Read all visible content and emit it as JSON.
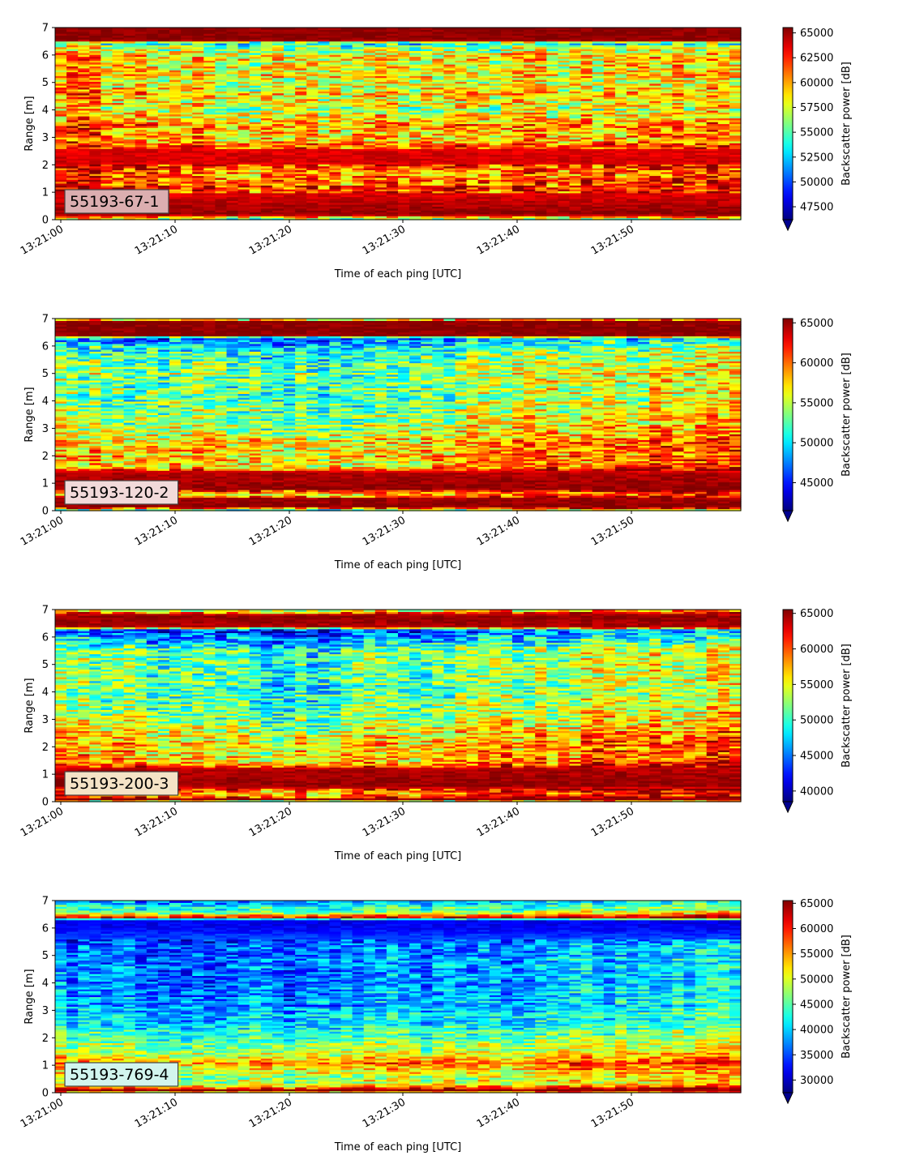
{
  "chart_data": [
    {
      "type": "heatmap",
      "id_label": "55193-67-1",
      "xlabel": "Time of each ping [UTC]",
      "ylabel": "Range [m]",
      "colorbar_label": "Backscatter power [dB]",
      "x_ticks": [
        "13:21:00",
        "13:21:10",
        "13:21:20",
        "13:21:30",
        "13:21:40",
        "13:21:50"
      ],
      "y_ticks": [
        "0",
        "1",
        "2",
        "3",
        "4",
        "5",
        "6",
        "7"
      ],
      "ylim": [
        0,
        7
      ],
      "colorbar_ticks": [
        "47500",
        "50000",
        "52500",
        "55000",
        "57500",
        "60000",
        "62500",
        "65000"
      ],
      "colorbar_range": [
        46200,
        65536
      ],
      "colormap": "jet",
      "id_box_color": "#dcaeb0",
      "profile": [
        [
          0.0,
          0.5
        ],
        [
          0.2,
          0.99
        ],
        [
          0.55,
          0.95
        ],
        [
          1.0,
          0.9
        ],
        [
          1.4,
          0.82
        ],
        [
          1.8,
          0.8
        ],
        [
          2.1,
          0.92
        ],
        [
          2.6,
          0.9
        ],
        [
          3.0,
          0.72
        ],
        [
          3.5,
          0.78
        ],
        [
          4.0,
          0.62
        ],
        [
          4.5,
          0.72
        ],
        [
          5.0,
          0.66
        ],
        [
          5.5,
          0.7
        ],
        [
          6.0,
          0.68
        ],
        [
          6.3,
          0.6
        ],
        [
          6.45,
          0.45
        ],
        [
          6.55,
          0.99
        ],
        [
          7.0,
          0.99
        ]
      ],
      "trend": [
        [
          0.0,
          0.05
        ],
        [
          0.3,
          -0.1
        ],
        [
          1.0,
          0.0
        ]
      ],
      "noise": 0.18
    },
    {
      "type": "heatmap",
      "id_label": "55193-120-2",
      "xlabel": "Time of each ping [UTC]",
      "ylabel": "Range [m]",
      "colorbar_label": "Backscatter power [dB]",
      "x_ticks": [
        "13:21:00",
        "13:21:10",
        "13:21:20",
        "13:21:30",
        "13:21:40",
        "13:21:50"
      ],
      "y_ticks": [
        "0",
        "1",
        "2",
        "3",
        "4",
        "5",
        "6",
        "7"
      ],
      "ylim": [
        0,
        7
      ],
      "colorbar_ticks": [
        "45000",
        "50000",
        "55000",
        "60000",
        "65000"
      ],
      "colorbar_range": [
        41500,
        65536
      ],
      "colormap": "jet",
      "id_box_color": "#f2dada",
      "profile": [
        [
          0.0,
          0.4
        ],
        [
          0.15,
          0.99
        ],
        [
          0.45,
          0.97
        ],
        [
          0.6,
          0.7
        ],
        [
          0.8,
          0.98
        ],
        [
          1.4,
          0.95
        ],
        [
          1.6,
          0.7
        ],
        [
          2.0,
          0.72
        ],
        [
          2.5,
          0.68
        ],
        [
          3.0,
          0.6
        ],
        [
          3.5,
          0.56
        ],
        [
          4.0,
          0.52
        ],
        [
          4.5,
          0.52
        ],
        [
          5.0,
          0.55
        ],
        [
          5.5,
          0.5
        ],
        [
          6.0,
          0.4
        ],
        [
          6.3,
          0.25
        ],
        [
          6.4,
          0.99
        ],
        [
          6.9,
          0.99
        ],
        [
          7.0,
          0.55
        ]
      ],
      "trend": [
        [
          0.0,
          0.0
        ],
        [
          0.35,
          -0.08
        ],
        [
          1.0,
          0.12
        ]
      ],
      "noise": 0.17
    },
    {
      "type": "heatmap",
      "id_label": "55193-200-3",
      "xlabel": "Time of each ping [UTC]",
      "ylabel": "Range [m]",
      "colorbar_label": "Backscatter power [dB]",
      "x_ticks": [
        "13:21:00",
        "13:21:10",
        "13:21:20",
        "13:21:30",
        "13:21:40",
        "13:21:50"
      ],
      "y_ticks": [
        "0",
        "1",
        "2",
        "3",
        "4",
        "5",
        "6",
        "7"
      ],
      "ylim": [
        0,
        7
      ],
      "colorbar_ticks": [
        "40000",
        "45000",
        "50000",
        "55000",
        "60000",
        "65000"
      ],
      "colorbar_range": [
        38500,
        65536
      ],
      "colormap": "jet",
      "id_box_color": "#f5e3c6",
      "profile": [
        [
          0.0,
          0.45
        ],
        [
          0.1,
          0.99
        ],
        [
          0.3,
          0.75
        ],
        [
          0.6,
          0.98
        ],
        [
          1.2,
          0.95
        ],
        [
          1.45,
          0.7
        ],
        [
          2.0,
          0.7
        ],
        [
          2.5,
          0.65
        ],
        [
          3.0,
          0.58
        ],
        [
          3.5,
          0.52
        ],
        [
          4.0,
          0.48
        ],
        [
          4.5,
          0.5
        ],
        [
          5.0,
          0.5
        ],
        [
          5.5,
          0.48
        ],
        [
          6.0,
          0.3
        ],
        [
          6.25,
          0.2
        ],
        [
          6.4,
          0.95
        ],
        [
          6.8,
          0.99
        ],
        [
          7.0,
          0.6
        ]
      ],
      "trend": [
        [
          0.0,
          0.02
        ],
        [
          0.3,
          -0.1
        ],
        [
          1.0,
          0.12
        ]
      ],
      "noise": 0.17
    },
    {
      "type": "heatmap",
      "id_label": "55193-769-4",
      "xlabel": "Time of each ping [UTC]",
      "ylabel": "Range [m]",
      "colorbar_label": "Backscatter power [dB]",
      "x_ticks": [
        "13:21:00",
        "13:21:10",
        "13:21:20",
        "13:21:30",
        "13:21:40",
        "13:21:50"
      ],
      "y_ticks": [
        "0",
        "1",
        "2",
        "3",
        "4",
        "5",
        "6",
        "7"
      ],
      "ylim": [
        0,
        7
      ],
      "colorbar_ticks": [
        "30000",
        "35000",
        "40000",
        "45000",
        "50000",
        "55000",
        "60000",
        "65000"
      ],
      "colorbar_range": [
        27500,
        65536
      ],
      "colormap": "jet",
      "id_box_color": "#d2f5ee",
      "profile": [
        [
          0.0,
          0.55
        ],
        [
          0.1,
          0.99
        ],
        [
          0.25,
          0.7
        ],
        [
          0.4,
          0.55
        ],
        [
          0.8,
          0.6
        ],
        [
          1.1,
          0.78
        ],
        [
          1.4,
          0.6
        ],
        [
          1.8,
          0.5
        ],
        [
          2.2,
          0.42
        ],
        [
          2.7,
          0.35
        ],
        [
          3.0,
          0.3
        ],
        [
          3.5,
          0.28
        ],
        [
          4.0,
          0.26
        ],
        [
          4.5,
          0.26
        ],
        [
          5.0,
          0.25
        ],
        [
          5.5,
          0.22
        ],
        [
          6.0,
          0.12
        ],
        [
          6.3,
          0.1
        ],
        [
          6.4,
          0.88
        ],
        [
          6.6,
          0.5
        ],
        [
          7.0,
          0.3
        ]
      ],
      "trend": [
        [
          0.0,
          0.0
        ],
        [
          0.3,
          -0.04
        ],
        [
          1.0,
          0.1
        ]
      ],
      "noise": 0.13
    }
  ]
}
